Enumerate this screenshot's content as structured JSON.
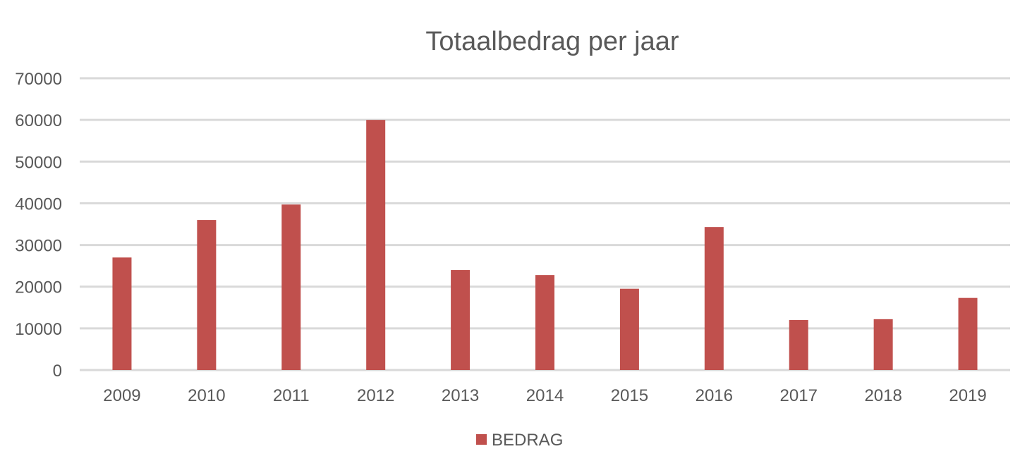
{
  "chart_data": {
    "type": "bar",
    "title": "Totaalbedrag per jaar",
    "xlabel": "",
    "ylabel": "",
    "categories": [
      "2009",
      "2010",
      "2011",
      "2012",
      "2013",
      "2014",
      "2015",
      "2016",
      "2017",
      "2018",
      "2019"
    ],
    "series": [
      {
        "name": "BEDRAG",
        "color": "#c0504d",
        "values": [
          27000,
          36000,
          39700,
          60000,
          24000,
          22800,
          19500,
          34300,
          12000,
          12200,
          17300
        ]
      }
    ],
    "ylim": [
      0,
      70000
    ],
    "yticks": [
      "0",
      "10000",
      "20000",
      "30000",
      "40000",
      "50000",
      "60000",
      "70000"
    ],
    "grid": true,
    "legend_position": "bottom"
  },
  "colors": {
    "bar": "#c0504d",
    "grid": "#d9d9d9",
    "text": "#595959"
  }
}
